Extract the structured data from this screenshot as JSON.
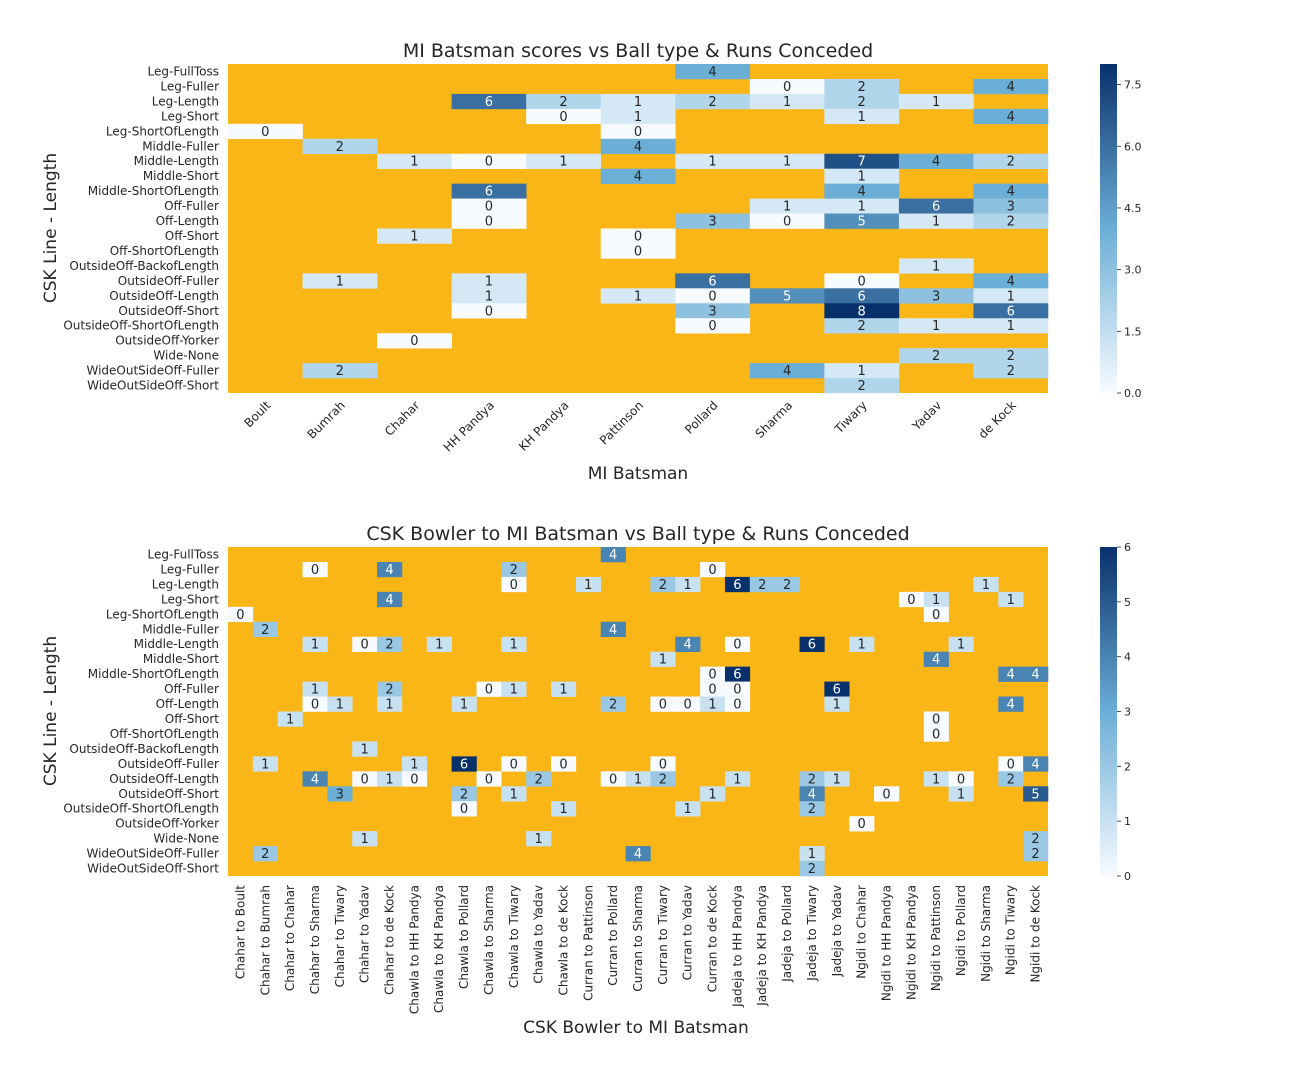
{
  "colors": {
    "nan_color": "#fab516",
    "cmap_low": "#f7fbff",
    "cmap_mid": "#6baed6",
    "cmap_high": "#08306b"
  },
  "chart_data": [
    {
      "type": "heatmap",
      "title": "MI Batsman scores vs Ball type & Runs Conceded",
      "xlabel": "MI Batsman",
      "ylabel": "CSK Line - Length",
      "colorbar": {
        "vmin": 0,
        "vmax": 8,
        "ticks": [
          "0.0",
          "1.5",
          "3.0",
          "4.5",
          "6.0",
          "7.5"
        ],
        "tick_values": [
          0,
          1.5,
          3,
          4.5,
          6,
          7.5
        ]
      },
      "x_tick_rotation": -45,
      "columns": [
        "Boult",
        "Bumrah",
        "Chahar",
        "HH Pandya",
        "KH Pandya",
        "Pattinson",
        "Pollard",
        "Sharma",
        "Tiwary",
        "Yadav",
        "de Kock"
      ],
      "rows": [
        "Leg-FullToss",
        "Leg-Fuller",
        "Leg-Length",
        "Leg-Short",
        "Leg-ShortOfLength",
        "Middle-Fuller",
        "Middle-Length",
        "Middle-Short",
        "Middle-ShortOfLength",
        "Off-Fuller",
        "Off-Length",
        "Off-Short",
        "Off-ShortOfLength",
        "OutsideOff-BackofLength",
        "OutsideOff-Fuller",
        "OutsideOff-Length",
        "OutsideOff-Short",
        "OutsideOff-ShortOfLength",
        "OutsideOff-Yorker",
        "Wide-None",
        "WideOutSideOff-Fuller",
        "WideOutSideOff-Short"
      ],
      "values": [
        [
          null,
          null,
          null,
          null,
          null,
          null,
          4,
          null,
          null,
          null,
          null
        ],
        [
          null,
          null,
          null,
          null,
          null,
          null,
          null,
          0,
          2,
          null,
          4
        ],
        [
          null,
          null,
          null,
          6,
          2,
          1,
          2,
          1,
          2,
          1,
          null
        ],
        [
          null,
          null,
          null,
          null,
          0,
          1,
          null,
          null,
          1,
          null,
          4
        ],
        [
          0,
          null,
          null,
          null,
          null,
          0,
          null,
          null,
          null,
          null,
          null
        ],
        [
          null,
          2,
          null,
          null,
          null,
          4,
          null,
          null,
          null,
          null,
          null
        ],
        [
          null,
          null,
          1,
          0,
          1,
          null,
          1,
          1,
          7,
          4,
          2
        ],
        [
          null,
          null,
          null,
          null,
          null,
          4,
          null,
          null,
          1,
          null,
          null
        ],
        [
          null,
          null,
          null,
          6,
          null,
          null,
          null,
          null,
          4,
          null,
          4
        ],
        [
          null,
          null,
          null,
          0,
          null,
          null,
          null,
          1,
          1,
          6,
          3
        ],
        [
          null,
          null,
          null,
          0,
          null,
          null,
          3,
          0,
          5,
          1,
          2
        ],
        [
          null,
          null,
          1,
          null,
          null,
          0,
          null,
          null,
          null,
          null,
          null
        ],
        [
          null,
          null,
          null,
          null,
          null,
          0,
          null,
          null,
          null,
          null,
          null
        ],
        [
          null,
          null,
          null,
          null,
          null,
          null,
          null,
          null,
          null,
          1,
          null
        ],
        [
          null,
          1,
          null,
          1,
          null,
          null,
          6,
          null,
          0,
          null,
          4
        ],
        [
          null,
          null,
          null,
          1,
          null,
          1,
          0,
          5,
          6,
          3,
          1
        ],
        [
          null,
          null,
          null,
          0,
          null,
          null,
          3,
          null,
          8,
          null,
          6
        ],
        [
          null,
          null,
          null,
          null,
          null,
          null,
          0,
          null,
          2,
          1,
          1
        ],
        [
          null,
          null,
          0,
          null,
          null,
          null,
          null,
          null,
          null,
          null,
          null
        ],
        [
          null,
          null,
          null,
          null,
          null,
          null,
          null,
          null,
          null,
          2,
          2
        ],
        [
          null,
          2,
          null,
          null,
          null,
          null,
          null,
          4,
          1,
          null,
          2
        ],
        [
          null,
          null,
          null,
          null,
          null,
          null,
          null,
          null,
          2,
          null,
          null
        ]
      ]
    },
    {
      "type": "heatmap",
      "title": "CSK Bowler to MI Batsman vs Ball type & Runs Conceded",
      "xlabel": "CSK Bowler to MI Batsman",
      "ylabel": "CSK Line - Length",
      "colorbar": {
        "vmin": 0,
        "vmax": 6,
        "ticks": [
          "0",
          "1",
          "2",
          "3",
          "4",
          "5",
          "6"
        ],
        "tick_values": [
          0,
          1,
          2,
          3,
          4,
          5,
          6
        ]
      },
      "x_tick_rotation": -90,
      "columns": [
        "Chahar to Boult",
        "Chahar to Bumrah",
        "Chahar to Chahar",
        "Chahar to Sharma",
        "Chahar to Tiwary",
        "Chahar to Yadav",
        "Chahar to de Kock",
        "Chawla to HH Pandya",
        "Chawla to KH Pandya",
        "Chawla to Pollard",
        "Chawla to Sharma",
        "Chawla to Tiwary",
        "Chawla to Yadav",
        "Chawla to de Kock",
        "Curran to Pattinson",
        "Curran to Pollard",
        "Curran to Sharma",
        "Curran to Tiwary",
        "Curran to Yadav",
        "Curran to de Kock",
        "Jadeja to HH Pandya",
        "Jadeja to KH Pandya",
        "Jadeja to Pollard",
        "Jadeja to Tiwary",
        "Jadeja to Yadav",
        "Ngidi to Chahar",
        "Ngidi to HH Pandya",
        "Ngidi to KH Pandya",
        "Ngidi to Pattinson",
        "Ngidi to Pollard",
        "Ngidi to Sharma",
        "Ngidi to Tiwary",
        "Ngidi to de Kock"
      ],
      "rows": [
        "Leg-FullToss",
        "Leg-Fuller",
        "Leg-Length",
        "Leg-Short",
        "Leg-ShortOfLength",
        "Middle-Fuller",
        "Middle-Length",
        "Middle-Short",
        "Middle-ShortOfLength",
        "Off-Fuller",
        "Off-Length",
        "Off-Short",
        "Off-ShortOfLength",
        "OutsideOff-BackofLength",
        "OutsideOff-Fuller",
        "OutsideOff-Length",
        "OutsideOff-Short",
        "OutsideOff-ShortOfLength",
        "OutsideOff-Yorker",
        "Wide-None",
        "WideOutSideOff-Fuller",
        "WideOutSideOff-Short"
      ],
      "values": [
        [
          null,
          null,
          null,
          null,
          null,
          null,
          null,
          null,
          null,
          null,
          null,
          null,
          null,
          null,
          null,
          4,
          null,
          null,
          null,
          null,
          null,
          null,
          null,
          null,
          null,
          null,
          null,
          null,
          null,
          null,
          null,
          null,
          null
        ],
        [
          null,
          null,
          null,
          0,
          null,
          null,
          4,
          null,
          null,
          null,
          null,
          2,
          null,
          null,
          null,
          null,
          null,
          null,
          null,
          0,
          null,
          null,
          null,
          null,
          null,
          null,
          null,
          null,
          null,
          null,
          null,
          null,
          null
        ],
        [
          null,
          null,
          null,
          null,
          null,
          null,
          null,
          null,
          null,
          null,
          null,
          0,
          null,
          null,
          1,
          null,
          null,
          2,
          1,
          null,
          6,
          2,
          2,
          null,
          null,
          null,
          null,
          null,
          null,
          null,
          1,
          null,
          null
        ],
        [
          null,
          null,
          null,
          null,
          null,
          null,
          4,
          null,
          null,
          null,
          null,
          null,
          null,
          null,
          null,
          null,
          null,
          null,
          null,
          null,
          null,
          null,
          null,
          null,
          null,
          null,
          null,
          0,
          1,
          null,
          null,
          1,
          null
        ],
        [
          0,
          null,
          null,
          null,
          null,
          null,
          null,
          null,
          null,
          null,
          null,
          null,
          null,
          null,
          null,
          null,
          null,
          null,
          null,
          null,
          null,
          null,
          null,
          null,
          null,
          null,
          null,
          null,
          0,
          null,
          null,
          null,
          null
        ],
        [
          null,
          2,
          null,
          null,
          null,
          null,
          null,
          null,
          null,
          null,
          null,
          null,
          null,
          null,
          null,
          4,
          null,
          null,
          null,
          null,
          null,
          null,
          null,
          null,
          null,
          null,
          null,
          null,
          null,
          null,
          null,
          null,
          null
        ],
        [
          null,
          null,
          null,
          1,
          null,
          0,
          2,
          null,
          1,
          null,
          null,
          1,
          null,
          null,
          null,
          null,
          null,
          null,
          4,
          null,
          0,
          null,
          null,
          6,
          null,
          1,
          null,
          null,
          null,
          1,
          null,
          null,
          null
        ],
        [
          null,
          null,
          null,
          null,
          null,
          null,
          null,
          null,
          null,
          null,
          null,
          null,
          null,
          null,
          null,
          null,
          null,
          1,
          null,
          null,
          null,
          null,
          null,
          null,
          null,
          null,
          null,
          null,
          4,
          null,
          null,
          null,
          null
        ],
        [
          null,
          null,
          null,
          null,
          null,
          null,
          null,
          null,
          null,
          null,
          null,
          null,
          null,
          null,
          null,
          null,
          null,
          null,
          null,
          0,
          6,
          null,
          null,
          null,
          null,
          null,
          null,
          null,
          null,
          null,
          null,
          4,
          4
        ],
        [
          null,
          null,
          null,
          1,
          null,
          null,
          2,
          null,
          null,
          null,
          0,
          1,
          null,
          1,
          null,
          null,
          null,
          null,
          null,
          0,
          0,
          null,
          null,
          null,
          6,
          null,
          null,
          null,
          null,
          null,
          null,
          null,
          null
        ],
        [
          null,
          null,
          null,
          0,
          1,
          null,
          1,
          null,
          null,
          1,
          null,
          null,
          null,
          null,
          null,
          2,
          null,
          0,
          0,
          1,
          0,
          null,
          null,
          null,
          1,
          null,
          null,
          null,
          null,
          null,
          null,
          4,
          null
        ],
        [
          null,
          null,
          1,
          null,
          null,
          null,
          null,
          null,
          null,
          null,
          null,
          null,
          null,
          null,
          null,
          null,
          null,
          null,
          null,
          null,
          null,
          null,
          null,
          null,
          null,
          null,
          null,
          null,
          0,
          null,
          null,
          null,
          null
        ],
        [
          null,
          null,
          null,
          null,
          null,
          null,
          null,
          null,
          null,
          null,
          null,
          null,
          null,
          null,
          null,
          null,
          null,
          null,
          null,
          null,
          null,
          null,
          null,
          null,
          null,
          null,
          null,
          null,
          0,
          null,
          null,
          null,
          null
        ],
        [
          null,
          null,
          null,
          null,
          null,
          1,
          null,
          null,
          null,
          null,
          null,
          null,
          null,
          null,
          null,
          null,
          null,
          null,
          null,
          null,
          null,
          null,
          null,
          null,
          null,
          null,
          null,
          null,
          null,
          null,
          null,
          null,
          null
        ],
        [
          null,
          1,
          null,
          null,
          null,
          null,
          null,
          1,
          null,
          6,
          null,
          0,
          null,
          0,
          null,
          null,
          null,
          0,
          null,
          null,
          null,
          null,
          null,
          null,
          null,
          null,
          null,
          null,
          null,
          null,
          null,
          0,
          4
        ],
        [
          null,
          null,
          null,
          4,
          null,
          0,
          1,
          0,
          null,
          null,
          0,
          null,
          2,
          null,
          null,
          0,
          1,
          2,
          null,
          null,
          1,
          null,
          null,
          2,
          1,
          null,
          null,
          null,
          1,
          0,
          null,
          2,
          null
        ],
        [
          null,
          null,
          null,
          null,
          3,
          null,
          null,
          null,
          null,
          2,
          null,
          1,
          null,
          null,
          null,
          null,
          null,
          null,
          null,
          1,
          null,
          null,
          null,
          4,
          null,
          null,
          0,
          null,
          null,
          1,
          null,
          null,
          5
        ],
        [
          null,
          null,
          null,
          null,
          null,
          null,
          null,
          null,
          null,
          0,
          null,
          null,
          null,
          1,
          null,
          null,
          null,
          null,
          1,
          null,
          null,
          null,
          null,
          2,
          null,
          null,
          null,
          null,
          null,
          null,
          null,
          null,
          null
        ],
        [
          null,
          null,
          null,
          null,
          null,
          null,
          null,
          null,
          null,
          null,
          null,
          null,
          null,
          null,
          null,
          null,
          null,
          null,
          null,
          null,
          null,
          null,
          null,
          null,
          null,
          0,
          null,
          null,
          null,
          null,
          null,
          null,
          null
        ],
        [
          null,
          null,
          null,
          null,
          null,
          1,
          null,
          null,
          null,
          null,
          null,
          null,
          1,
          null,
          null,
          null,
          null,
          null,
          null,
          null,
          null,
          null,
          null,
          null,
          null,
          null,
          null,
          null,
          null,
          null,
          null,
          null,
          2
        ],
        [
          null,
          2,
          null,
          null,
          null,
          null,
          null,
          null,
          null,
          null,
          null,
          null,
          null,
          null,
          null,
          null,
          4,
          null,
          null,
          null,
          null,
          null,
          null,
          1,
          null,
          null,
          null,
          null,
          null,
          null,
          null,
          null,
          2
        ],
        [
          null,
          null,
          null,
          null,
          null,
          null,
          null,
          null,
          null,
          null,
          null,
          null,
          null,
          null,
          null,
          null,
          null,
          null,
          null,
          null,
          null,
          null,
          null,
          2,
          null,
          null,
          null,
          null,
          null,
          null,
          null,
          null,
          null
        ]
      ]
    }
  ]
}
